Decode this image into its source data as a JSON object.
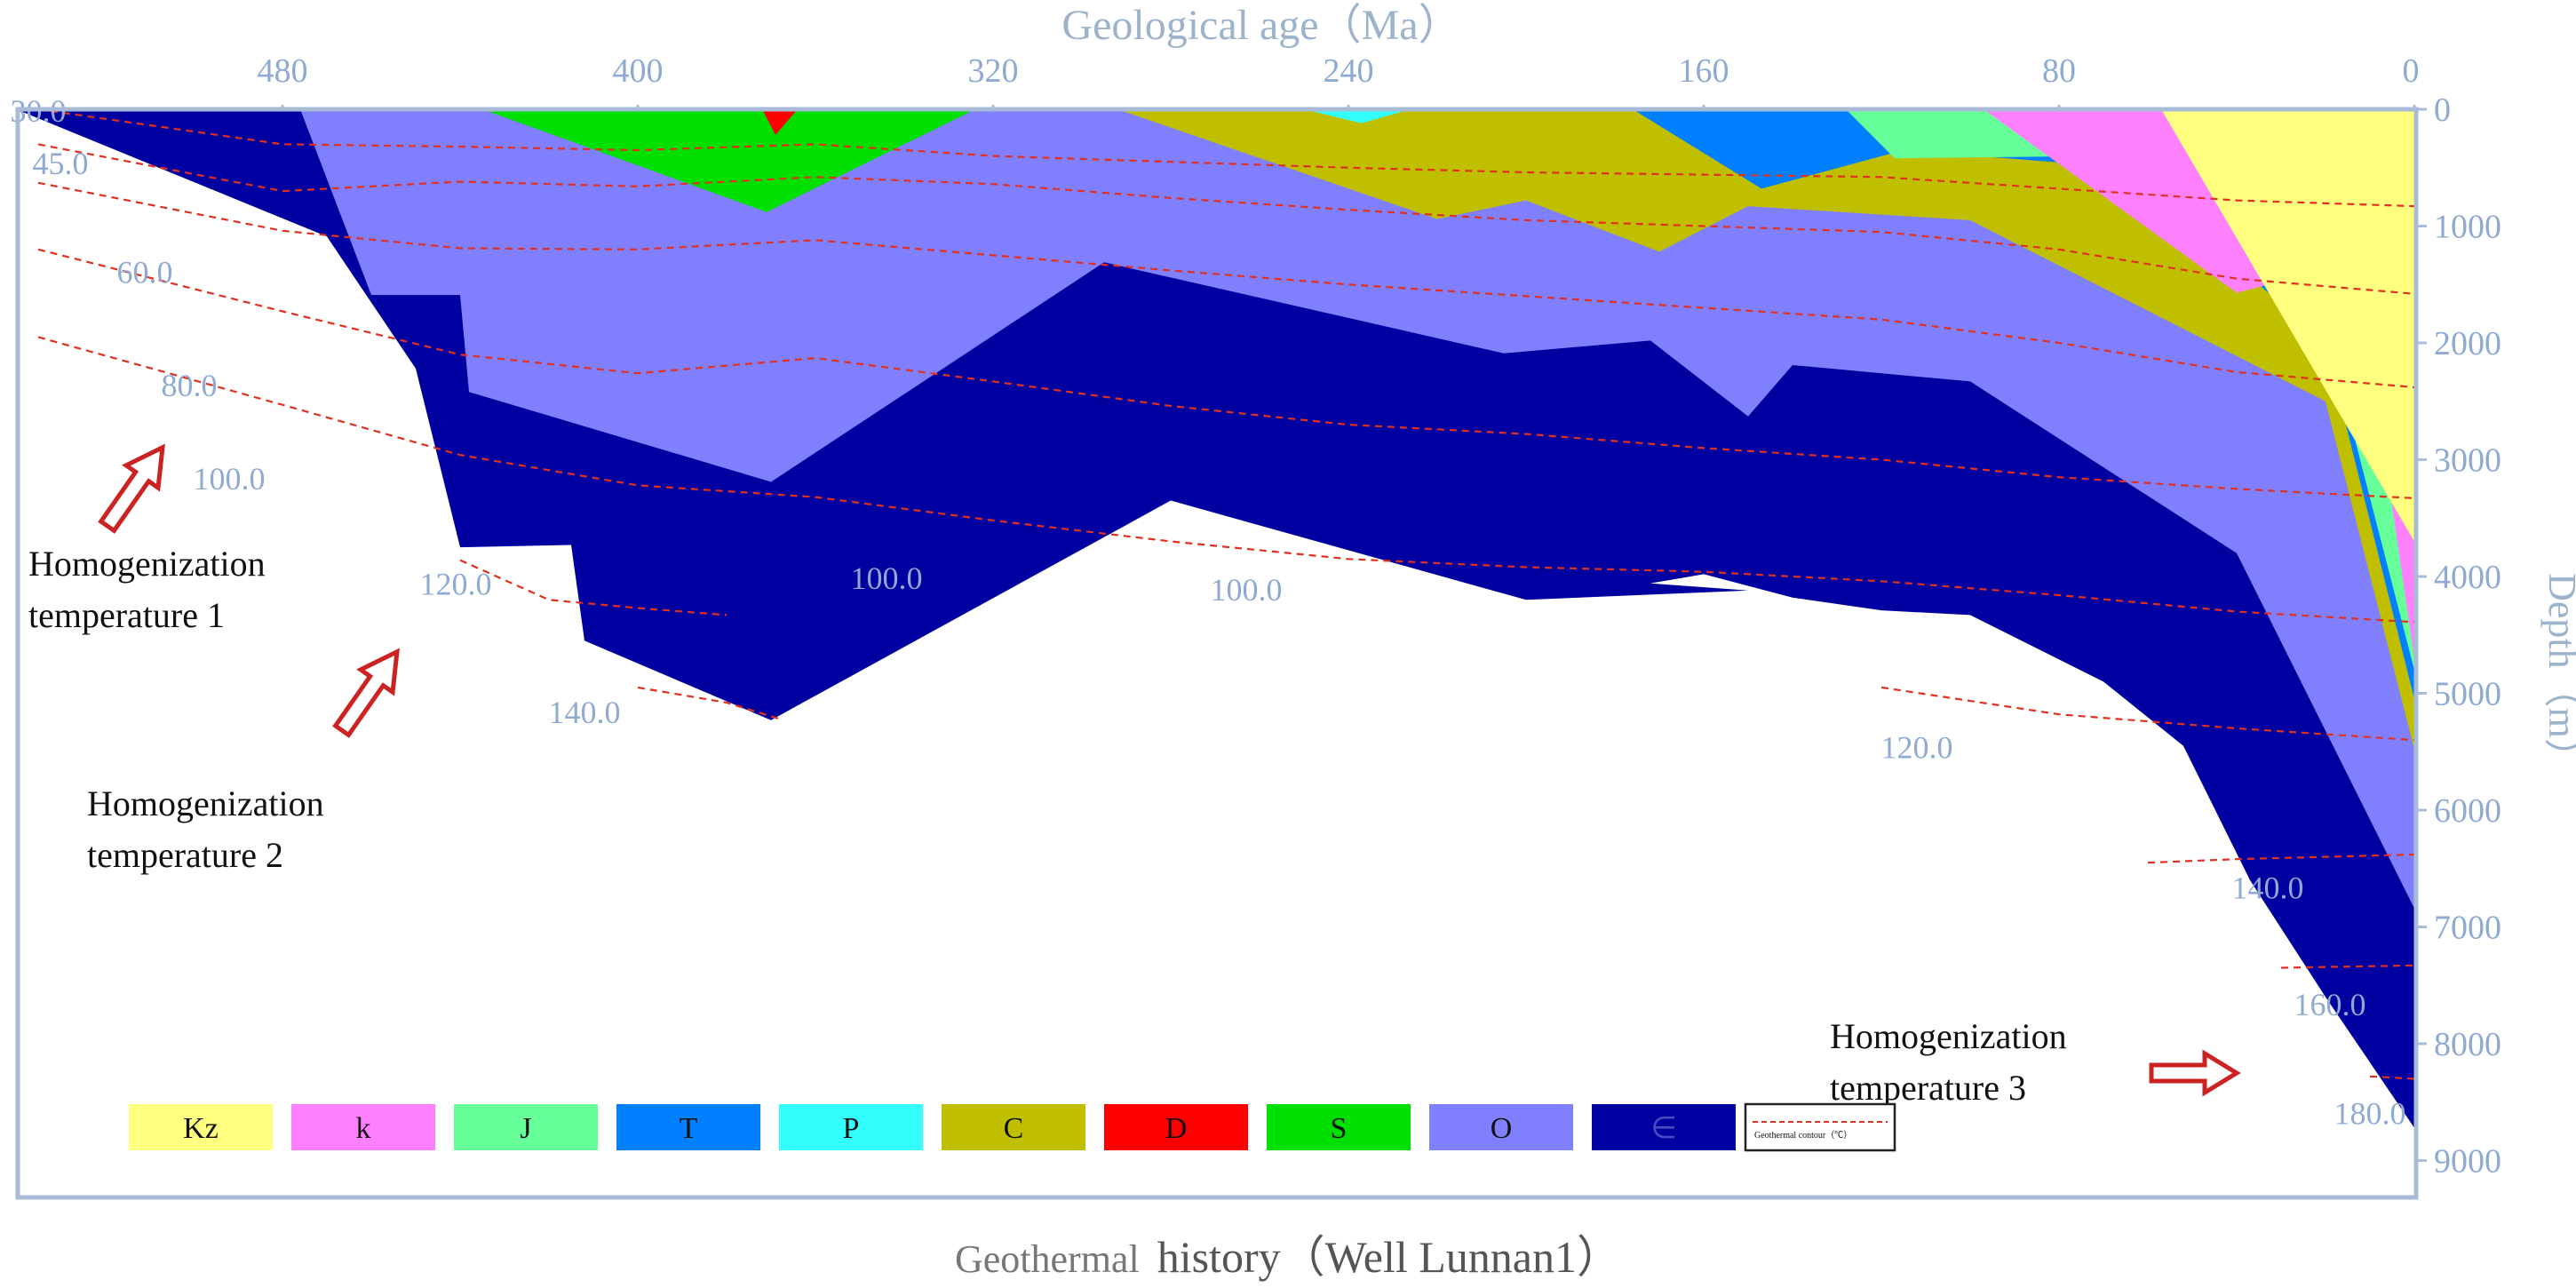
{
  "chart_data": {
    "type": "area",
    "title": "Geological age（Ma）",
    "caption_part1": "Geothermal",
    "caption_part2": "history（Well Lunnan1）",
    "xlabel": "Geological age（Ma）",
    "ylabel": "Depth（m）",
    "x_reversed": true,
    "xlim": [
      0,
      542
    ],
    "ylim": [
      0,
      9200
    ],
    "x_ticks": [
      "480",
      "400",
      "320",
      "240",
      "160",
      "80",
      "0"
    ],
    "x_tick_values": [
      480,
      400,
      320,
      240,
      160,
      80,
      0
    ],
    "y_ticks": [
      "0",
      "1000",
      "2000",
      "3000",
      "4000",
      "5000",
      "6000",
      "7000",
      "8000",
      "9000"
    ],
    "y_tick_values": [
      0,
      1000,
      2000,
      3000,
      4000,
      5000,
      6000,
      7000,
      8000,
      9000
    ],
    "colors": {
      "Kz": "#ffff80",
      "k": "#ff80ff",
      "J": "#66ff99",
      "T": "#0080ff",
      "P": "#33ffff",
      "C": "#bfbf00",
      "D": "#ff0000",
      "S": "#00e000",
      "O": "#8080ff",
      "Cm": "#0000a0",
      "isotherm": "#e03020",
      "axis": "#a8bcd8",
      "arrow": "#cc2222"
    },
    "legend": [
      {
        "key": "Kz",
        "label": "Kz"
      },
      {
        "key": "k",
        "label": "k"
      },
      {
        "key": "J",
        "label": "J"
      },
      {
        "key": "T",
        "label": "T"
      },
      {
        "key": "P",
        "label": "P"
      },
      {
        "key": "C",
        "label": "C"
      },
      {
        "key": "D",
        "label": "D"
      },
      {
        "key": "S",
        "label": "S"
      },
      {
        "key": "O",
        "label": "O"
      },
      {
        "key": "Cm",
        "label": "∈"
      }
    ],
    "isotherm_legend": "Geothermal contour（℃）",
    "layers": [
      {
        "key": "Cm",
        "polygon": [
          [
            542,
            0
          ],
          [
            542,
            6
          ],
          [
            470,
            1090
          ],
          [
            450,
            2220
          ],
          [
            440,
            3750
          ],
          [
            415,
            3730
          ],
          [
            412,
            4550
          ],
          [
            370,
            5230
          ],
          [
            280,
            3350
          ],
          [
            200,
            4200
          ],
          [
            150,
            4120
          ],
          [
            200,
            3980
          ],
          [
            180,
            4110
          ],
          [
            160,
            3980
          ],
          [
            140,
            4180
          ],
          [
            120,
            4290
          ],
          [
            100,
            4330
          ],
          [
            70,
            4900
          ],
          [
            52,
            5450
          ],
          [
            37,
            6600
          ],
          [
            20,
            7600
          ],
          [
            0,
            8720
          ],
          [
            0,
            0
          ]
        ]
      },
      {
        "key": "O",
        "polygon": [
          [
            476,
            0
          ],
          [
            460,
            1590
          ],
          [
            440,
            1590
          ],
          [
            438,
            2420
          ],
          [
            370,
            3190
          ],
          [
            295,
            1310
          ],
          [
            205,
            2090
          ],
          [
            172,
            1980
          ],
          [
            150,
            2630
          ],
          [
            140,
            2190
          ],
          [
            100,
            2330
          ],
          [
            40,
            3800
          ],
          [
            0,
            6840
          ],
          [
            0,
            0
          ]
        ]
      },
      {
        "key": "S",
        "polygon": [
          [
            435,
            0
          ],
          [
            371,
            880
          ],
          [
            324,
            0
          ]
        ]
      },
      {
        "key": "D",
        "polygon": [
          [
            372,
            0
          ],
          [
            369,
            220
          ],
          [
            364,
            0
          ]
        ]
      },
      {
        "key": "C",
        "polygon": [
          [
            292,
            0
          ],
          [
            220,
            940
          ],
          [
            200,
            780
          ],
          [
            170,
            1220
          ],
          [
            150,
            830
          ],
          [
            100,
            950
          ],
          [
            20,
            2500
          ],
          [
            0,
            5480
          ],
          [
            0,
            0
          ]
        ]
      },
      {
        "key": "P",
        "polygon": [
          [
            250,
            0
          ],
          [
            237,
            120
          ],
          [
            226,
            0
          ]
        ]
      },
      {
        "key": "T",
        "polygon": [
          [
            176,
            0
          ],
          [
            147,
            680
          ],
          [
            115,
            350
          ],
          [
            65,
            500
          ],
          [
            20,
            2000
          ],
          [
            0,
            5050
          ],
          [
            0,
            0
          ]
        ]
      },
      {
        "key": "J",
        "polygon": [
          [
            128,
            0
          ],
          [
            117,
            420
          ],
          [
            70,
            400
          ],
          [
            20,
            1850
          ],
          [
            0,
            4800
          ],
          [
            0,
            0
          ]
        ]
      },
      {
        "key": "k",
        "polygon": [
          [
            97,
            0
          ],
          [
            40,
            1570
          ],
          [
            13,
            1310
          ],
          [
            0,
            4700
          ],
          [
            0,
            0
          ]
        ]
      },
      {
        "key": "Kz",
        "polygon": [
          [
            57,
            0
          ],
          [
            0,
            3700
          ],
          [
            0,
            0
          ]
        ]
      }
    ],
    "isotherms": [
      {
        "value": 30.0,
        "points": [
          [
            535,
            0
          ],
          [
            480,
            300
          ],
          [
            440,
            320
          ],
          [
            400,
            350
          ],
          [
            360,
            300
          ],
          [
            320,
            400
          ],
          [
            280,
            450
          ],
          [
            240,
            500
          ],
          [
            200,
            540
          ],
          [
            160,
            560
          ],
          [
            120,
            580
          ],
          [
            80,
            680
          ],
          [
            40,
            780
          ],
          [
            0,
            830
          ]
        ]
      },
      {
        "value": 45.0,
        "points": [
          [
            535,
            300
          ],
          [
            480,
            700
          ],
          [
            440,
            620
          ],
          [
            400,
            660
          ],
          [
            360,
            580
          ],
          [
            320,
            640
          ],
          [
            280,
            760
          ],
          [
            240,
            860
          ],
          [
            200,
            950
          ],
          [
            160,
            1000
          ],
          [
            120,
            1050
          ],
          [
            80,
            1200
          ],
          [
            40,
            1450
          ],
          [
            0,
            1580
          ]
        ]
      },
      {
        "value": 60.0,
        "points": [
          [
            535,
            630
          ],
          [
            480,
            1040
          ],
          [
            440,
            1190
          ],
          [
            400,
            1200
          ],
          [
            360,
            1120
          ],
          [
            320,
            1250
          ],
          [
            280,
            1380
          ],
          [
            240,
            1500
          ],
          [
            200,
            1600
          ],
          [
            160,
            1700
          ],
          [
            120,
            1800
          ],
          [
            80,
            2000
          ],
          [
            40,
            2250
          ],
          [
            0,
            2380
          ]
        ]
      },
      {
        "value": 80.0,
        "points": [
          [
            535,
            1200
          ],
          [
            480,
            1730
          ],
          [
            440,
            2100
          ],
          [
            400,
            2260
          ],
          [
            360,
            2130
          ],
          [
            320,
            2330
          ],
          [
            280,
            2540
          ],
          [
            240,
            2700
          ],
          [
            200,
            2780
          ],
          [
            160,
            2900
          ],
          [
            120,
            3000
          ],
          [
            80,
            3150
          ],
          [
            40,
            3250
          ],
          [
            0,
            3330
          ]
        ]
      },
      {
        "value": 100.0,
        "points": [
          [
            535,
            1950
          ],
          [
            480,
            2530
          ],
          [
            440,
            2960
          ],
          [
            400,
            3220
          ],
          [
            360,
            3320
          ],
          [
            320,
            3520
          ],
          [
            280,
            3700
          ],
          [
            240,
            3850
          ],
          [
            200,
            3920
          ],
          [
            160,
            3960
          ],
          [
            120,
            4040
          ],
          [
            80,
            4160
          ],
          [
            40,
            4300
          ],
          [
            0,
            4390
          ]
        ]
      },
      {
        "value": 120.0,
        "points": [
          [
            440,
            3860
          ],
          [
            420,
            4200
          ],
          [
            400,
            4270
          ],
          [
            380,
            4330
          ]
        ]
      },
      {
        "value": 140.0,
        "points": [
          [
            400,
            4950
          ],
          [
            380,
            5080
          ],
          [
            368,
            5220
          ]
        ]
      },
      {
        "value": 120.0,
        "points": [
          [
            120,
            4950
          ],
          [
            80,
            5180
          ],
          [
            40,
            5300
          ],
          [
            0,
            5400
          ]
        ]
      },
      {
        "value": 140.0,
        "points": [
          [
            60,
            6450
          ],
          [
            40,
            6420
          ],
          [
            0,
            6380
          ]
        ]
      },
      {
        "value": 160.0,
        "points": [
          [
            30,
            7350
          ],
          [
            0,
            7330
          ]
        ]
      },
      {
        "value": 180.0,
        "points": [
          [
            10,
            8280
          ],
          [
            0,
            8300
          ]
        ]
      }
    ],
    "isotherm_labels": [
      {
        "text": "30.0",
        "age": 535,
        "depth": 0
      },
      {
        "text": "45.0",
        "age": 530,
        "depth": 450
      },
      {
        "text": "60.0",
        "age": 511,
        "depth": 1380
      },
      {
        "text": "80.0",
        "age": 501,
        "depth": 2350
      },
      {
        "text": "100.0",
        "age": 492,
        "depth": 3150
      },
      {
        "text": "120.0",
        "age": 441,
        "depth": 4050
      },
      {
        "text": "140.0",
        "age": 412,
        "depth": 5150
      },
      {
        "text": "100.0",
        "age": 344,
        "depth": 4000
      },
      {
        "text": "100.0",
        "age": 263,
        "depth": 4100
      },
      {
        "text": "120.0",
        "age": 112,
        "depth": 5450
      },
      {
        "text": "140.0",
        "age": 33,
        "depth": 6650
      },
      {
        "text": "160.0",
        "age": 19,
        "depth": 7650
      },
      {
        "text": "180.0",
        "age": 10,
        "depth": 8580
      }
    ],
    "annotations": [
      {
        "text_lines": [
          "Homogenization",
          "temperature  1"
        ]
      },
      {
        "text_lines": [
          "Homogenization",
          "temperature  2"
        ]
      },
      {
        "text_lines": [
          "Homogenization",
          "temperature  3"
        ]
      }
    ]
  }
}
